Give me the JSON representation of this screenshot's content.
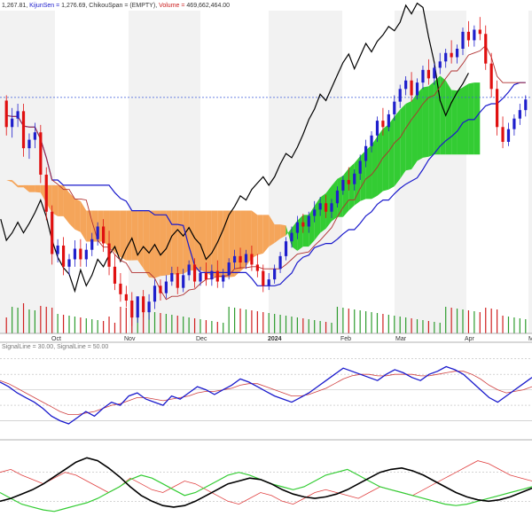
{
  "header": {
    "tenkan": "1,267.81",
    "kijun_label": "KijunSen = ",
    "kijun": "1,276.69",
    "chikou_label": "ChikouSpan = ",
    "chikou": "(EMPTY)",
    "volume_label": "Volume = ",
    "volume": "469,662,464.00"
  },
  "rsi_header": {
    "text": "SignalLine = 30.00, SignalLine = 50.00"
  },
  "colors": {
    "bull": "#1f1fcc",
    "bear": "#e01010",
    "kijun": "#1a1acc",
    "tenkan": "#b03030",
    "chikou": "#000000",
    "cloud_bull": "#33cc33",
    "cloud_bear": "#f5a55a",
    "vol_up": "#2e9c2e",
    "vol_down": "#d02020",
    "rsi": "#1a1acc",
    "rsi_signal": "#d04040",
    "osc_black": "#000000",
    "osc_red": "#e04040",
    "osc_green": "#33cc33"
  },
  "chart_data": [
    {
      "type": "candlestick",
      "x_labels": [
        "Oct",
        "Nov",
        "Dec",
        "2024",
        "Feb",
        "Mar",
        "Apr",
        "M"
      ],
      "reference_level": 1268,
      "ylim": [
        1045,
        1350
      ],
      "candles": [
        [
          1265,
          1270,
          1240,
          1232
        ],
        [
          1240,
          1258,
          1248,
          1230
        ],
        [
          1248,
          1262,
          1255,
          1240
        ],
        [
          1255,
          1262,
          1220,
          1212
        ],
        [
          1220,
          1234,
          1228,
          1210
        ],
        [
          1228,
          1244,
          1235,
          1220
        ],
        [
          1235,
          1242,
          1195,
          1187
        ],
        [
          1195,
          1202,
          1160,
          1152
        ],
        [
          1160,
          1166,
          1120,
          1110
        ],
        [
          1120,
          1134,
          1128,
          1112
        ],
        [
          1128,
          1136,
          1108,
          1100
        ],
        [
          1108,
          1120,
          1115,
          1100
        ],
        [
          1115,
          1133,
          1125,
          1108
        ],
        [
          1125,
          1134,
          1115,
          1108
        ],
        [
          1115,
          1130,
          1124,
          1108
        ],
        [
          1124,
          1140,
          1134,
          1118
        ],
        [
          1134,
          1150,
          1146,
          1128
        ],
        [
          1146,
          1153,
          1130,
          1122
        ],
        [
          1130,
          1142,
          1108,
          1100
        ],
        [
          1108,
          1120,
          1092,
          1086
        ],
        [
          1092,
          1102,
          1082,
          1075
        ],
        [
          1082,
          1090,
          1076,
          1070
        ],
        [
          1076,
          1084,
          1060,
          1052
        ],
        [
          1060,
          1066,
          1080,
          1055
        ],
        [
          1080,
          1086,
          1065,
          1060
        ],
        [
          1065,
          1082,
          1075,
          1058
        ],
        [
          1075,
          1096,
          1090,
          1068
        ],
        [
          1090,
          1096,
          1083,
          1076
        ],
        [
          1083,
          1100,
          1094,
          1078
        ],
        [
          1094,
          1108,
          1102,
          1090
        ],
        [
          1102,
          1108,
          1088,
          1082
        ],
        [
          1088,
          1106,
          1100,
          1084
        ],
        [
          1100,
          1114,
          1110,
          1095
        ],
        [
          1110,
          1116,
          1094,
          1088
        ],
        [
          1094,
          1108,
          1102,
          1090
        ],
        [
          1102,
          1112,
          1096,
          1090
        ],
        [
          1096,
          1110,
          1104,
          1090
        ],
        [
          1104,
          1114,
          1094,
          1088
        ],
        [
          1094,
          1106,
          1100,
          1088
        ],
        [
          1100,
          1116,
          1112,
          1096
        ],
        [
          1112,
          1124,
          1118,
          1106
        ],
        [
          1118,
          1126,
          1112,
          1106
        ],
        [
          1112,
          1124,
          1120,
          1106
        ],
        [
          1120,
          1128,
          1110,
          1104
        ],
        [
          1110,
          1120,
          1104,
          1098
        ],
        [
          1104,
          1110,
          1090,
          1084
        ],
        [
          1090,
          1102,
          1096,
          1086
        ],
        [
          1096,
          1110,
          1106,
          1092
        ],
        [
          1106,
          1122,
          1118,
          1102
        ],
        [
          1118,
          1136,
          1132,
          1114
        ],
        [
          1132,
          1146,
          1140,
          1126
        ],
        [
          1140,
          1156,
          1150,
          1134
        ],
        [
          1150,
          1158,
          1146,
          1140
        ],
        [
          1146,
          1160,
          1156,
          1140
        ],
        [
          1156,
          1170,
          1162,
          1150
        ],
        [
          1162,
          1174,
          1168,
          1156
        ],
        [
          1168,
          1176,
          1160,
          1154
        ],
        [
          1160,
          1172,
          1168,
          1154
        ],
        [
          1168,
          1184,
          1180,
          1164
        ],
        [
          1180,
          1194,
          1190,
          1176
        ],
        [
          1190,
          1202,
          1186,
          1180
        ],
        [
          1186,
          1200,
          1196,
          1180
        ],
        [
          1196,
          1214,
          1208,
          1190
        ],
        [
          1208,
          1228,
          1222,
          1202
        ],
        [
          1222,
          1236,
          1232,
          1216
        ],
        [
          1232,
          1250,
          1246,
          1226
        ],
        [
          1246,
          1258,
          1240,
          1232
        ],
        [
          1240,
          1256,
          1252,
          1236
        ],
        [
          1252,
          1270,
          1264,
          1246
        ],
        [
          1264,
          1280,
          1276,
          1258
        ],
        [
          1276,
          1288,
          1284,
          1270
        ],
        [
          1284,
          1292,
          1270,
          1264
        ],
        [
          1270,
          1286,
          1282,
          1266
        ],
        [
          1282,
          1298,
          1294,
          1276
        ],
        [
          1294,
          1304,
          1286,
          1280
        ],
        [
          1286,
          1300,
          1296,
          1280
        ],
        [
          1296,
          1310,
          1302,
          1290
        ],
        [
          1302,
          1314,
          1310,
          1296
        ],
        [
          1310,
          1322,
          1306,
          1300
        ],
        [
          1306,
          1318,
          1314,
          1300
        ],
        [
          1314,
          1334,
          1330,
          1308
        ],
        [
          1330,
          1340,
          1322,
          1316
        ],
        [
          1322,
          1336,
          1332,
          1316
        ],
        [
          1332,
          1344,
          1328,
          1322
        ],
        [
          1328,
          1336,
          1300,
          1294
        ],
        [
          1300,
          1310,
          1276,
          1268
        ],
        [
          1276,
          1284,
          1240,
          1232
        ],
        [
          1240,
          1250,
          1226,
          1220
        ],
        [
          1226,
          1244,
          1238,
          1222
        ],
        [
          1238,
          1252,
          1248,
          1232
        ],
        [
          1248,
          1262,
          1256,
          1242
        ],
        [
          1256,
          1270,
          1266,
          1250
        ]
      ]
    },
    {
      "type": "line",
      "series": [
        {
          "values": [
            55,
            52,
            48,
            45,
            42,
            38,
            33,
            30,
            28,
            32,
            36,
            33,
            38,
            42,
            40,
            46,
            48,
            44,
            42,
            40,
            46,
            44,
            48,
            52,
            50,
            47,
            50,
            53,
            57,
            55,
            52,
            49,
            46,
            44,
            42,
            45,
            48,
            52,
            56,
            60,
            64,
            62,
            60,
            58,
            56,
            60,
            63,
            61,
            58,
            56,
            60,
            62,
            65,
            63,
            60,
            55,
            50,
            45,
            42,
            46,
            50,
            54,
            58
          ]
        },
        {
          "values": [
            56,
            54,
            51,
            48,
            45,
            42,
            39,
            36,
            34,
            34,
            35,
            36,
            38,
            40,
            41,
            43,
            45,
            45,
            44,
            43,
            44,
            45,
            46,
            48,
            49,
            49,
            50,
            51,
            53,
            54,
            54,
            52,
            50,
            48,
            46,
            46,
            47,
            49,
            51,
            54,
            57,
            59,
            60,
            60,
            59,
            59,
            60,
            60,
            60,
            59,
            59,
            60,
            61,
            62,
            62,
            60,
            57,
            53,
            50,
            48,
            49,
            50,
            52
          ]
        }
      ],
      "ylim": [
        20,
        75
      ]
    },
    {
      "type": "line",
      "series": [
        {
          "values": [
            40,
            42,
            45,
            48,
            52,
            57,
            62,
            67,
            70,
            68,
            63,
            57,
            50,
            44,
            40,
            37,
            36,
            37,
            40,
            44,
            48,
            52,
            54,
            56,
            55,
            52,
            48,
            45,
            43,
            42,
            43,
            45,
            48,
            52,
            56,
            60,
            62,
            63,
            61,
            58,
            54,
            50,
            46,
            43,
            41,
            40,
            41,
            43,
            46,
            49
          ]
        },
        {
          "values": [
            60,
            62,
            58,
            55,
            52,
            56,
            60,
            58,
            54,
            50,
            46,
            50,
            56,
            52,
            48,
            46,
            50,
            54,
            52,
            48,
            44,
            40,
            38,
            42,
            46,
            44,
            40,
            38,
            42,
            46,
            48,
            46,
            44,
            42,
            46,
            50,
            48,
            46,
            44,
            48,
            52,
            56,
            60,
            64,
            68,
            66,
            62,
            58,
            56,
            54
          ]
        },
        {
          "values": [
            46,
            42,
            38,
            36,
            34,
            33,
            35,
            37,
            39,
            42,
            46,
            50,
            55,
            58,
            56,
            52,
            48,
            44,
            46,
            50,
            54,
            58,
            60,
            58,
            55,
            52,
            50,
            48,
            50,
            54,
            58,
            60,
            62,
            58,
            54,
            50,
            48,
            46,
            44,
            42,
            40,
            38,
            37,
            38,
            40,
            42,
            44,
            46,
            48,
            50
          ]
        }
      ],
      "ylim": [
        20,
        80
      ]
    }
  ]
}
